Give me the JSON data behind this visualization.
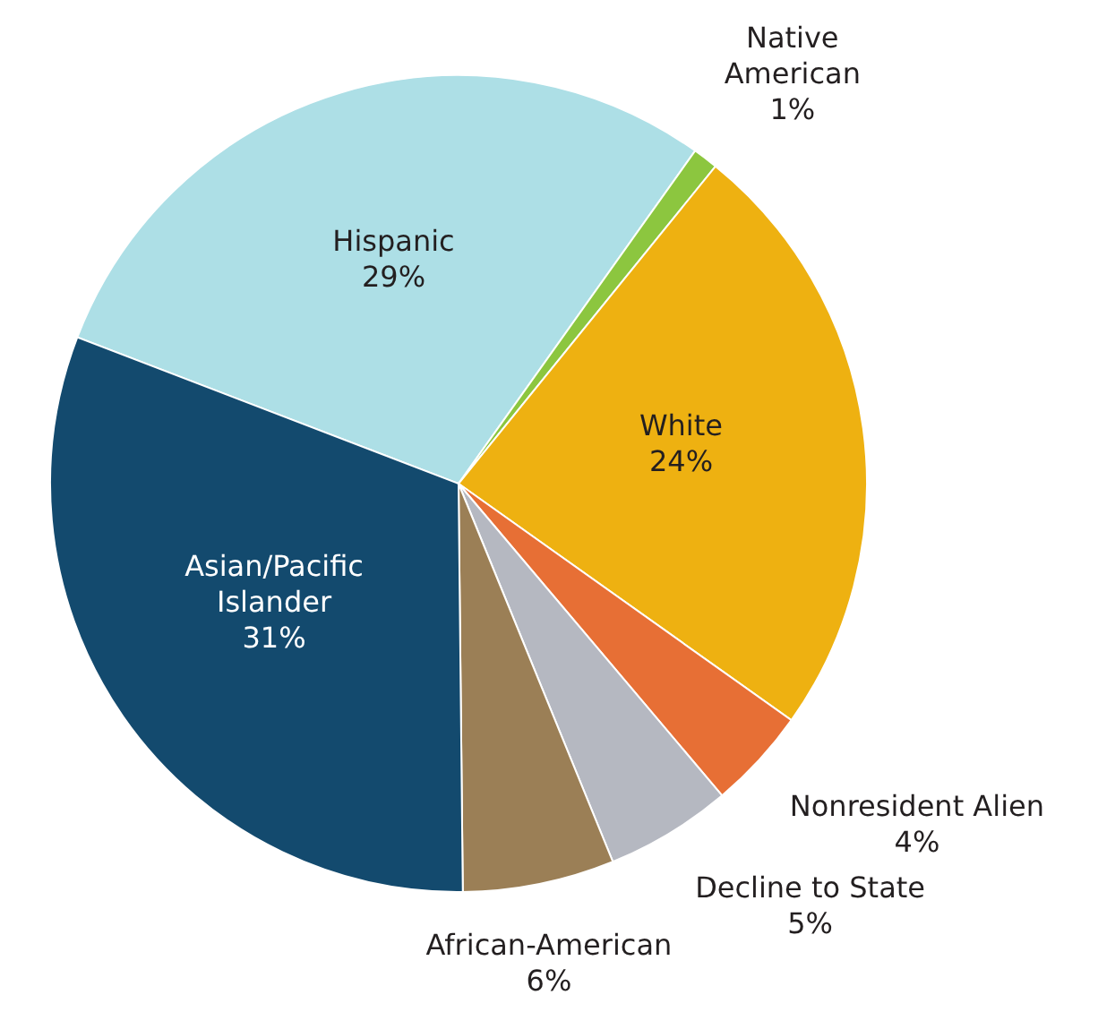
{
  "chart_data": {
    "type": "pie",
    "categories": [
      "Hispanic",
      "Native American",
      "White",
      "Nonresident Alien",
      "Decline to State",
      "African-American",
      "Asian/Pacific Islander"
    ],
    "values": [
      29,
      1,
      24,
      4,
      5,
      6,
      31
    ],
    "value_labels": [
      "29%",
      "1%",
      "24%",
      "4%",
      "5%",
      "6%",
      "31%"
    ],
    "colors": [
      "#addfe6",
      "#8cc63f",
      "#eeb111",
      "#e76f35",
      "#b5b8c1",
      "#9b7f56",
      "#134a6e"
    ]
  }
}
